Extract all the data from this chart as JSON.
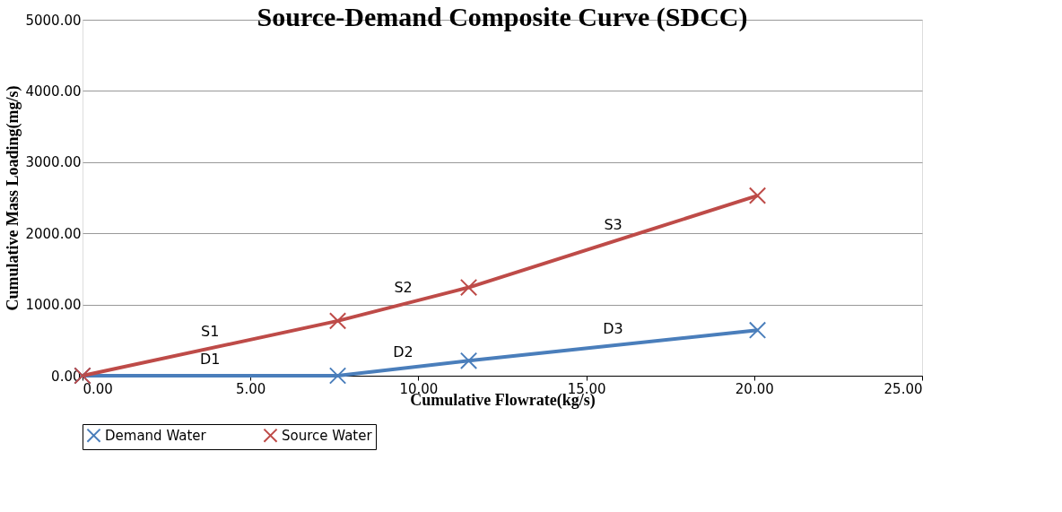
{
  "chart_data": {
    "type": "line",
    "title": "Source-Demand Composite Curve (SDCC)",
    "xlabel": "Cumulative Flowrate(kg/s)",
    "ylabel": "Cumulative Mass Loading(mg/s)",
    "xlim": [
      0,
      25
    ],
    "ylim": [
      0,
      5000
    ],
    "xticks": [
      {
        "value": 0,
        "label": "0.00"
      },
      {
        "value": 5,
        "label": "5.00"
      },
      {
        "value": 10,
        "label": "10.00"
      },
      {
        "value": 15,
        "label": "15.00"
      },
      {
        "value": 20,
        "label": "20.00"
      },
      {
        "value": 25,
        "label": "25.00"
      }
    ],
    "yticks": [
      {
        "value": 0,
        "label": "0.00"
      },
      {
        "value": 1000,
        "label": "1000.00"
      },
      {
        "value": 2000,
        "label": "2000.00"
      },
      {
        "value": 3000,
        "label": "3000.00"
      },
      {
        "value": 4000,
        "label": "4000.00"
      },
      {
        "value": 5000,
        "label": "5000.00"
      }
    ],
    "grid": "y",
    "legend": "bottom",
    "line_style": "solid",
    "series": [
      {
        "name": "Demand Water",
        "color": "#4a7ebb",
        "marker": "cross",
        "x": [
          0,
          7.6,
          11.5,
          20.1
        ],
        "values": [
          0,
          0,
          210,
          640
        ]
      },
      {
        "name": "Source Water",
        "color": "#be4b48",
        "marker": "cross",
        "x": [
          0,
          7.6,
          11.5,
          20.1
        ],
        "values": [
          0,
          770,
          1240,
          2530
        ]
      }
    ],
    "annotations": [
      "D1",
      "S1",
      "D2",
      "S2",
      "D3",
      "S3"
    ]
  }
}
